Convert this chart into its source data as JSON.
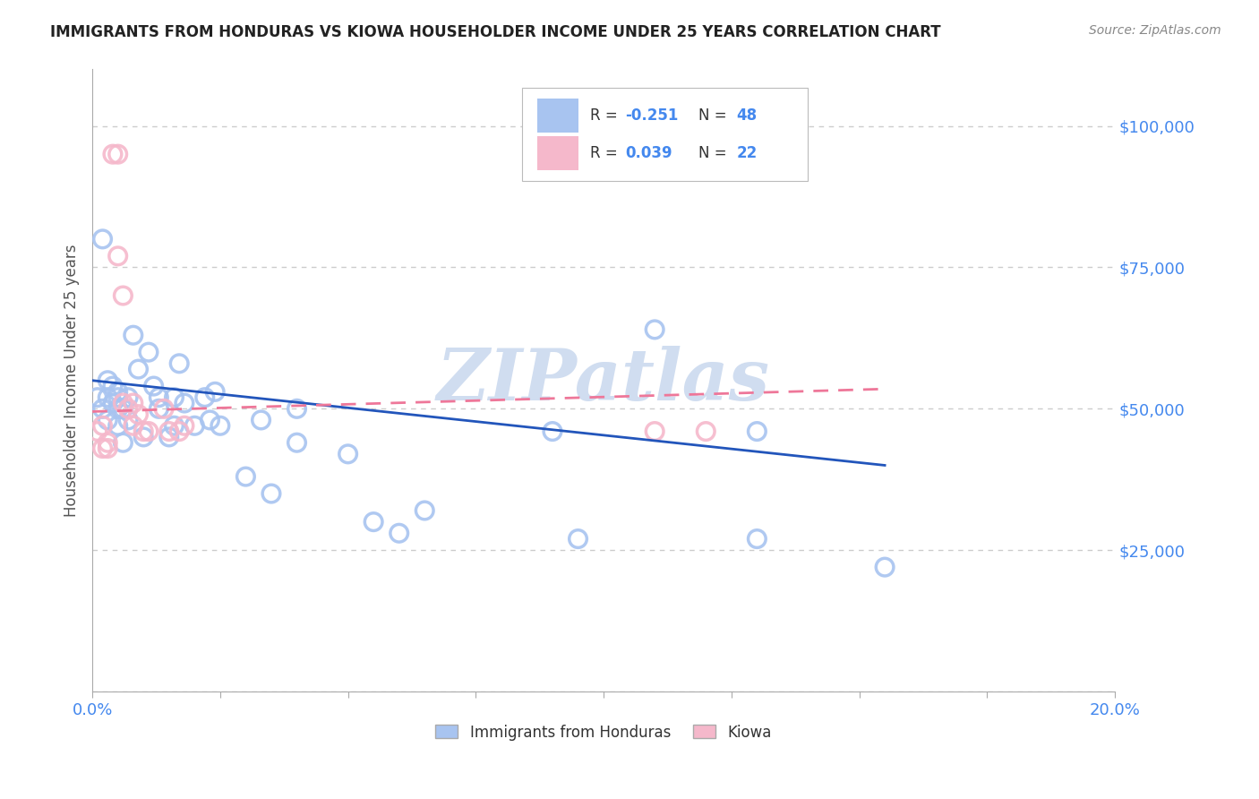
{
  "title": "IMMIGRANTS FROM HONDURAS VS KIOWA HOUSEHOLDER INCOME UNDER 25 YEARS CORRELATION CHART",
  "source": "Source: ZipAtlas.com",
  "ylabel": "Householder Income Under 25 years",
  "legend_bottom": [
    "Immigrants from Honduras",
    "Kiowa"
  ],
  "blue_R": "-0.251",
  "blue_N": "48",
  "pink_R": "0.039",
  "pink_N": "22",
  "xmin": 0.0,
  "xmax": 0.2,
  "ymin": 0,
  "ymax": 110000,
  "yticks": [
    0,
    25000,
    50000,
    75000,
    100000
  ],
  "ytick_labels": [
    "",
    "$25,000",
    "$50,000",
    "$75,000",
    "$100,000"
  ],
  "xticks": [
    0.0,
    0.025,
    0.05,
    0.075,
    0.1,
    0.125,
    0.15,
    0.175,
    0.2
  ],
  "xtick_labels": [
    "0.0%",
    "",
    "",
    "",
    "",
    "",
    "",
    "",
    "20.0%"
  ],
  "blue_color": "#a8c4f0",
  "pink_color": "#f5b8cb",
  "blue_line_color": "#2255bb",
  "pink_line_color": "#ee7799",
  "tick_label_color": "#4488ee",
  "watermark": "ZIPatlas",
  "blue_scatter_x": [
    0.001,
    0.002,
    0.003,
    0.003,
    0.003,
    0.004,
    0.004,
    0.005,
    0.005,
    0.005,
    0.005,
    0.006,
    0.006,
    0.007,
    0.007,
    0.008,
    0.009,
    0.01,
    0.011,
    0.012,
    0.013,
    0.013,
    0.015,
    0.016,
    0.016,
    0.017,
    0.018,
    0.02,
    0.022,
    0.023,
    0.024,
    0.025,
    0.03,
    0.033,
    0.035,
    0.04,
    0.04,
    0.05,
    0.055,
    0.06,
    0.065,
    0.09,
    0.095,
    0.11,
    0.13,
    0.13,
    0.155,
    0.002
  ],
  "blue_scatter_y": [
    52000,
    50000,
    55000,
    52000,
    48000,
    54000,
    51000,
    53000,
    52000,
    50000,
    47000,
    50000,
    44000,
    52000,
    48000,
    63000,
    57000,
    45000,
    60000,
    54000,
    52000,
    50000,
    45000,
    52000,
    47000,
    58000,
    51000,
    47000,
    52000,
    48000,
    53000,
    47000,
    38000,
    48000,
    35000,
    50000,
    44000,
    42000,
    30000,
    28000,
    32000,
    46000,
    27000,
    64000,
    27000,
    46000,
    22000,
    80000
  ],
  "pink_scatter_x": [
    0.001,
    0.002,
    0.002,
    0.003,
    0.003,
    0.004,
    0.005,
    0.005,
    0.006,
    0.006,
    0.007,
    0.008,
    0.008,
    0.009,
    0.01,
    0.011,
    0.014,
    0.015,
    0.017,
    0.018,
    0.11,
    0.12
  ],
  "pink_scatter_y": [
    46000,
    43000,
    47000,
    43000,
    44000,
    95000,
    95000,
    77000,
    70000,
    51000,
    50000,
    51000,
    47000,
    49000,
    46000,
    46000,
    50000,
    46000,
    46000,
    47000,
    46000,
    46000
  ],
  "blue_trend_x": [
    0.0,
    0.155
  ],
  "blue_trend_y": [
    55000,
    40000
  ],
  "pink_trend_x": [
    0.0,
    0.155
  ],
  "pink_trend_y": [
    49500,
    53500
  ],
  "background_color": "#ffffff",
  "grid_color": "#cccccc",
  "title_color": "#222222",
  "axis_label_color": "#555555",
  "watermark_color": "#d0ddf0"
}
